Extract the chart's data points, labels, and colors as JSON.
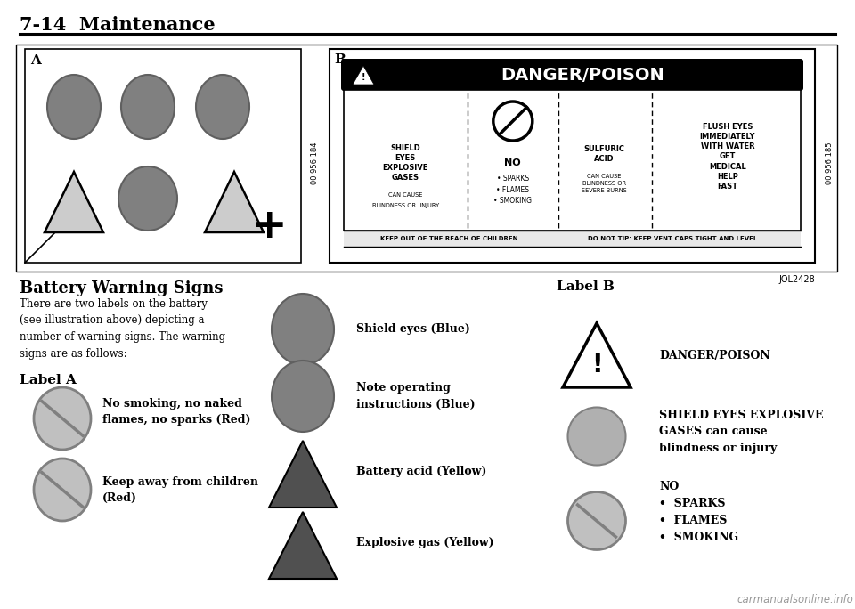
{
  "title": "7-14  Maintenance",
  "bg_color": "#ffffff",
  "title_fontsize": 15,
  "section_title": "Battery Warning Signs",
  "section_title_fontsize": 13,
  "body_text": "There are two labels on the battery\n(see illustration above) depicting a\nnumber of warning signs. The warning\nsigns are as follows:",
  "body_fontsize": 8.5,
  "label_a_title": "Label A",
  "label_b_title": "Label B",
  "label_a_items": [
    {
      "text": "No smoking, no naked\nflames, no sparks (Red)"
    },
    {
      "text": "Keep away from children\n(Red)"
    }
  ],
  "label_b_items": [
    {
      "text": "SHIELD EYES EXPLOSIVE\nGASES can cause\nblindness or injury"
    },
    {
      "text": "NO\n•  SPARKS\n•  FLAMES\n•  SMOKING"
    }
  ],
  "center_items": [
    {
      "text": "Shield eyes (Blue)"
    },
    {
      "text": "Note operating\ninstructions (Blue)"
    },
    {
      "text": "Battery acid (Yellow)"
    },
    {
      "text": "Explosive gas (Yellow)"
    }
  ],
  "danger_label": "DANGER/POISON",
  "watermark": "carmanualsonline.info",
  "photo_code_a": "00 956 184",
  "photo_code_b": "00 956 185",
  "jol_code": "JOL2428",
  "col1_text1": "SHIELD\nEYES\nEXPLOSIVE\nGASES",
  "col1_text2": "CAN CAUSE",
  "col1_text3": "BLINDNESS OR  INJURY",
  "col2_text1": "NO",
  "col2_text2": "• SPARKS\n• FLAMES\n• SMOKING",
  "col3_text1": "SULFURIC\nACID",
  "col3_text2": "CAN CAUSE\nBLINDNESS OR\nSEVERE BURNS",
  "col4_text": "FLUSH EYES\nIMMEDIATELY\nWITH WATER\nGET\nMEDICAL\nHELP\nFAST",
  "bot_text1": "KEEP OUT OF THE REACH OF CHILDREN",
  "bot_text2": "DO NOT TIP: KEEP VENT CAPS TIGHT AND LEVEL"
}
